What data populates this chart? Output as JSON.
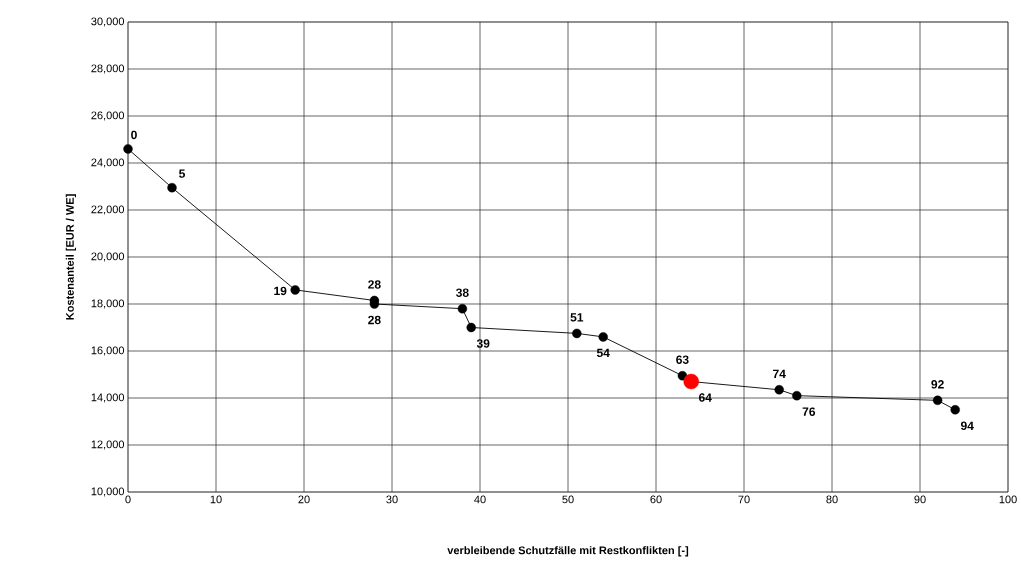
{
  "chart_data": {
    "type": "line",
    "xlabel": "verbleibende Schutzfälle mit Restkonflikten [-]",
    "ylabel": "Kostenanteil [EUR / WE]",
    "x": [
      0,
      5,
      19,
      28,
      28,
      38,
      39,
      51,
      54,
      63,
      64,
      74,
      76,
      92,
      94
    ],
    "series": [
      {
        "color": "#000000",
        "colors": [
          "#000000",
          "#000000",
          "#000000",
          "#000000",
          "#000000",
          "#000000",
          "#000000",
          "#000000",
          "#000000",
          "#000000",
          "#ff0000",
          "#000000",
          "#000000",
          "#000000",
          "#000000"
        ],
        "values": [
          24600,
          22950,
          18600,
          18150,
          18000,
          17800,
          17000,
          16750,
          16600,
          14950,
          14700,
          14350,
          14100,
          13900,
          13500
        ]
      }
    ],
    "annotations": [
      {
        "text": "0",
        "x": 0,
        "y": 24600
      },
      {
        "text": "5",
        "x": 5,
        "y": 22950
      },
      {
        "text": "19",
        "x": 19,
        "y": 18600
      },
      {
        "text": "28",
        "x": 28,
        "y": 18150
      },
      {
        "text": "28",
        "x": 28,
        "y": 18000
      },
      {
        "text": "38",
        "x": 38,
        "y": 17800
      },
      {
        "text": "39",
        "x": 39,
        "y": 17000
      },
      {
        "text": "51",
        "x": 51,
        "y": 16750
      },
      {
        "text": "54",
        "x": 54,
        "y": 16600
      },
      {
        "text": "63",
        "x": 63,
        "y": 14950
      },
      {
        "text": "64",
        "x": 64,
        "y": 14700
      },
      {
        "text": "74",
        "x": 74,
        "y": 14350
      },
      {
        "text": "76",
        "x": 76,
        "y": 14100
      },
      {
        "text": "92",
        "x": 92,
        "y": 13900
      },
      {
        "text": "94",
        "x": 94,
        "y": 13500
      }
    ],
    "xlim": [
      0,
      100
    ],
    "xticks": [
      0,
      10,
      20,
      30,
      40,
      50,
      60,
      70,
      80,
      90,
      100
    ],
    "ylim": [
      10000,
      30000
    ],
    "yticks": [
      {
        "value": 10000,
        "label": "10,000"
      },
      {
        "value": 12000,
        "label": "12,000"
      },
      {
        "value": 14000,
        "label": "14,000"
      },
      {
        "value": 16000,
        "label": "16,000"
      },
      {
        "value": 18000,
        "label": "18,000"
      },
      {
        "value": 20000,
        "label": "20,000"
      },
      {
        "value": 22000,
        "label": "22,000"
      },
      {
        "value": 24000,
        "label": "24,000"
      },
      {
        "value": 26000,
        "label": "26,000"
      },
      {
        "value": 28000,
        "label": "28,000"
      },
      {
        "value": 30000,
        "label": "30,000"
      }
    ],
    "grid": true,
    "marker": "circle",
    "line_style": "solid"
  }
}
